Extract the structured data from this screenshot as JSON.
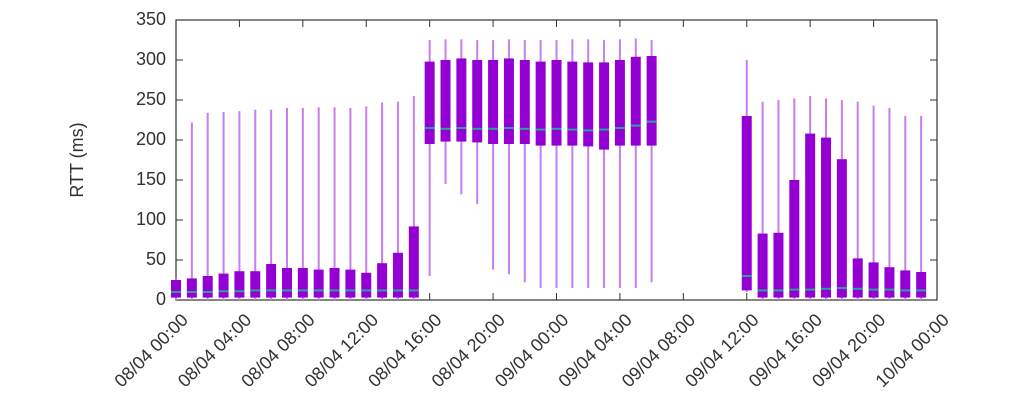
{
  "chart_data": {
    "type": "boxplot",
    "y_label": "RTT (ms)",
    "x": [
      "08/04 00:00",
      "08/04 01:00",
      "08/04 02:00",
      "08/04 03:00",
      "08/04 04:00",
      "08/04 05:00",
      "08/04 06:00",
      "08/04 07:00",
      "08/04 08:00",
      "08/04 09:00",
      "08/04 10:00",
      "08/04 11:00",
      "08/04 12:00",
      "08/04 13:00",
      "08/04 14:00",
      "08/04 15:00",
      "08/04 16:00",
      "08/04 17:00",
      "08/04 18:00",
      "08/04 19:00",
      "08/04 20:00",
      "08/04 21:00",
      "08/04 22:00",
      "08/04 23:00",
      "09/04 00:00",
      "09/04 01:00",
      "09/04 02:00",
      "09/04 03:00",
      "09/04 04:00",
      "09/04 05:00",
      "09/04 06:00",
      "09/04 12:00",
      "09/04 13:00",
      "09/04 14:00",
      "09/04 15:00",
      "09/04 16:00",
      "09/04 17:00",
      "09/04 18:00",
      "09/04 19:00",
      "09/04 20:00",
      "09/04 21:00",
      "09/04 22:00",
      "09/04 23:00"
    ],
    "min": [
      0,
      0,
      0,
      0,
      0,
      0,
      0,
      0,
      0,
      0,
      0,
      0,
      0,
      0,
      0,
      0,
      30,
      145,
      132,
      120,
      38,
      32,
      22,
      15,
      15,
      15,
      15,
      15,
      15,
      15,
      22,
      10,
      0,
      0,
      0,
      0,
      0,
      0,
      0,
      0,
      0,
      0,
      0
    ],
    "q1": [
      3,
      3,
      3,
      3,
      3,
      3,
      3,
      3,
      3,
      3,
      3,
      3,
      3,
      3,
      3,
      3,
      195,
      198,
      198,
      197,
      195,
      195,
      195,
      193,
      193,
      193,
      192,
      188,
      193,
      193,
      193,
      12,
      3,
      3,
      3,
      3,
      3,
      3,
      3,
      3,
      3,
      3,
      3
    ],
    "median": [
      10,
      10,
      10,
      11,
      11,
      12,
      12,
      12,
      12,
      12,
      12,
      12,
      12,
      12,
      12,
      12,
      215,
      214,
      215,
      214,
      214,
      215,
      214,
      213,
      214,
      213,
      212,
      213,
      215,
      218,
      223,
      30,
      12,
      12,
      13,
      13,
      14,
      15,
      14,
      13,
      13,
      12,
      12
    ],
    "q3": [
      25,
      27,
      30,
      33,
      36,
      36,
      45,
      40,
      40,
      38,
      40,
      38,
      34,
      46,
      59,
      92,
      298,
      300,
      302,
      300,
      300,
      302,
      300,
      298,
      300,
      298,
      297,
      297,
      300,
      304,
      305,
      230,
      83,
      84,
      150,
      208,
      203,
      176,
      52,
      47,
      41,
      37,
      35
    ],
    "max": [
      27,
      222,
      234,
      235,
      236,
      238,
      238,
      240,
      240,
      241,
      241,
      240,
      242,
      247,
      248,
      255,
      325,
      326,
      326,
      325,
      325,
      326,
      325,
      325,
      325,
      326,
      326,
      325,
      326,
      327,
      325,
      300,
      248,
      250,
      252,
      255,
      252,
      250,
      248,
      243,
      240,
      230,
      230
    ],
    "xlim": [
      "08/04 00:00",
      "10/04 00:00"
    ],
    "xticks": [
      "08/04 00:00",
      "08/04 04:00",
      "08/04 08:00",
      "08/04 12:00",
      "08/04 16:00",
      "08/04 20:00",
      "09/04 00:00",
      "09/04 04:00",
      "09/04 08:00",
      "09/04 12:00",
      "09/04 16:00",
      "09/04 20:00",
      "10/04 00:00"
    ],
    "ylim": [
      0,
      350
    ],
    "yticks": [
      0,
      50,
      100,
      150,
      200,
      250,
      300,
      350
    ],
    "box_color": "#9400d3",
    "whisker_color": "#c77ef0",
    "median_color": "#2aa198"
  }
}
